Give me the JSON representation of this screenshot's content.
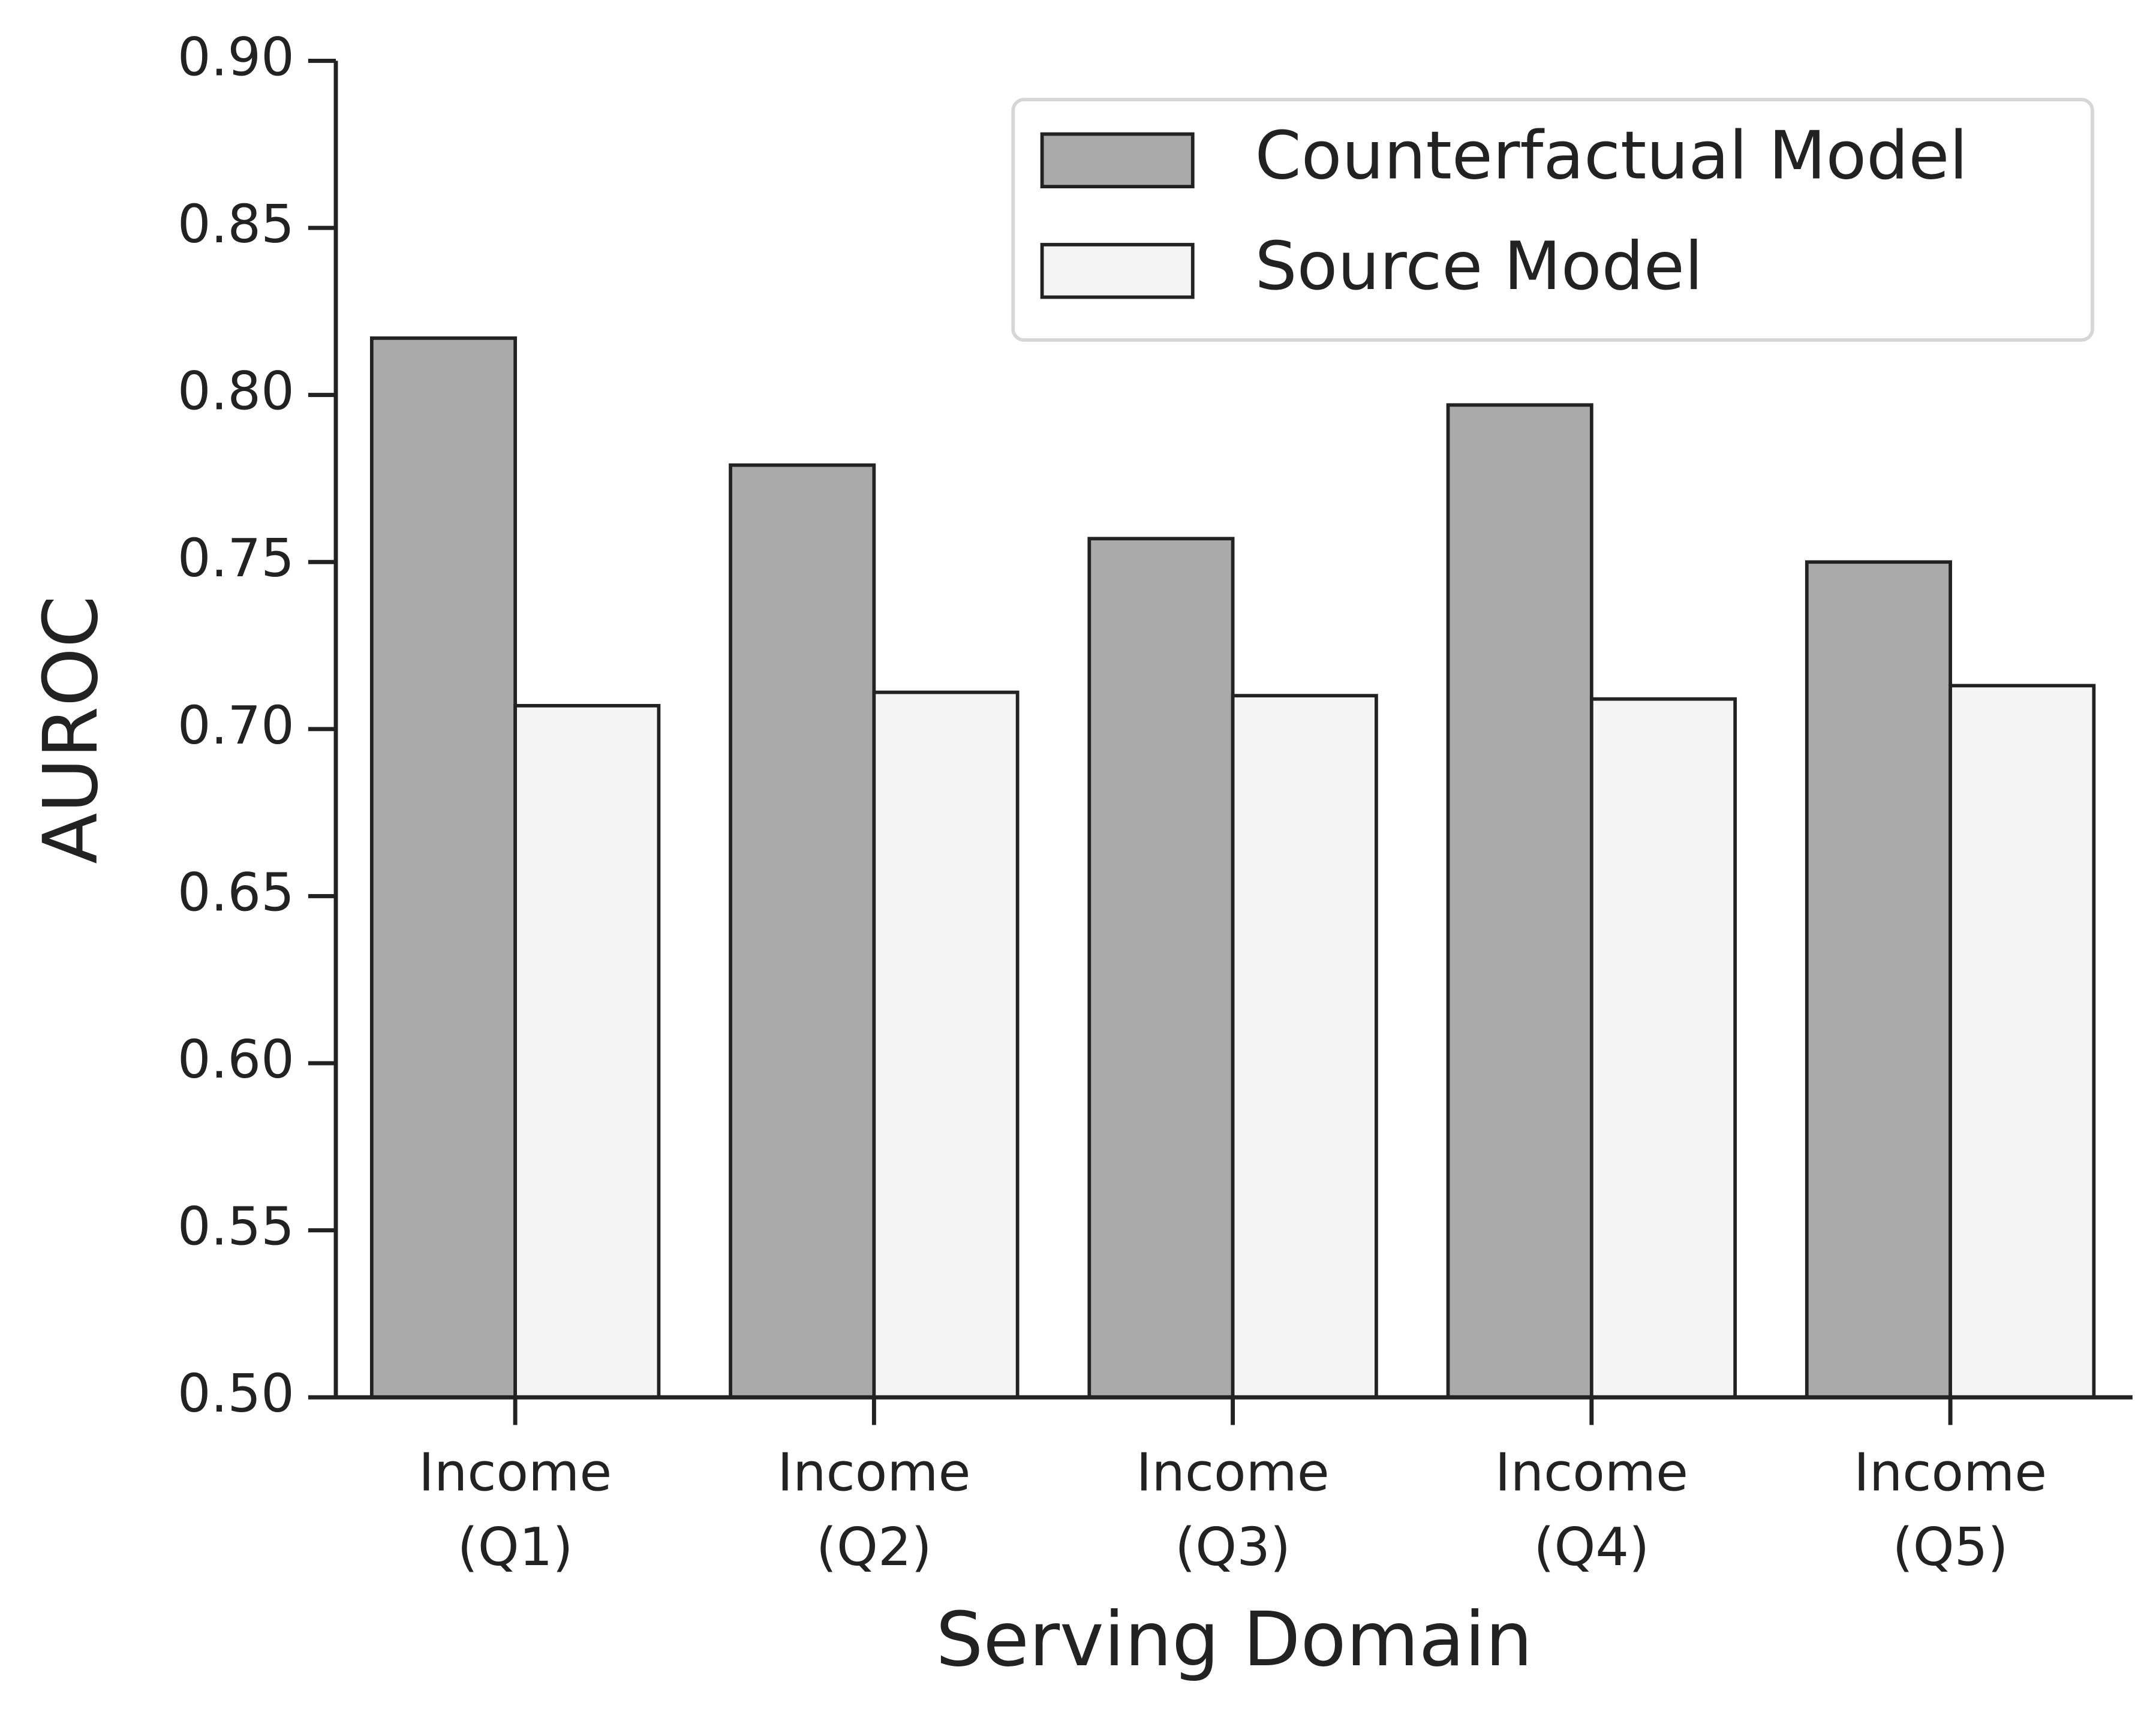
{
  "chart_data": {
    "type": "bar",
    "x_label": "Serving Domain",
    "y_label": "AUROC",
    "categories": [
      "Income\n(Q1)",
      "Income\n(Q2)",
      "Income\n(Q3)",
      "Income\n(Q4)",
      "Income\n(Q5)"
    ],
    "series": [
      {
        "name": "Counterfactual Model",
        "color": "#aaaaaa",
        "values": [
          0.817,
          0.779,
          0.757,
          0.797,
          0.75
        ]
      },
      {
        "name": "Source Model",
        "color": "#f4f4f4",
        "values": [
          0.707,
          0.711,
          0.71,
          0.709,
          0.713
        ]
      }
    ],
    "ylim": [
      0.5,
      0.9
    ],
    "yticks": [
      {
        "value": 0.5,
        "label": "0.50"
      },
      0.55,
      {
        "value": 0.6,
        "label": "0.60"
      },
      0.65,
      {
        "value": 0.7,
        "label": "0.70"
      },
      0.75,
      {
        "value": 0.8,
        "label": "0.80"
      },
      0.85,
      {
        "value": 0.9,
        "label": "0.90"
      }
    ],
    "legend": "upper right",
    "edge_color": "#222222"
  }
}
